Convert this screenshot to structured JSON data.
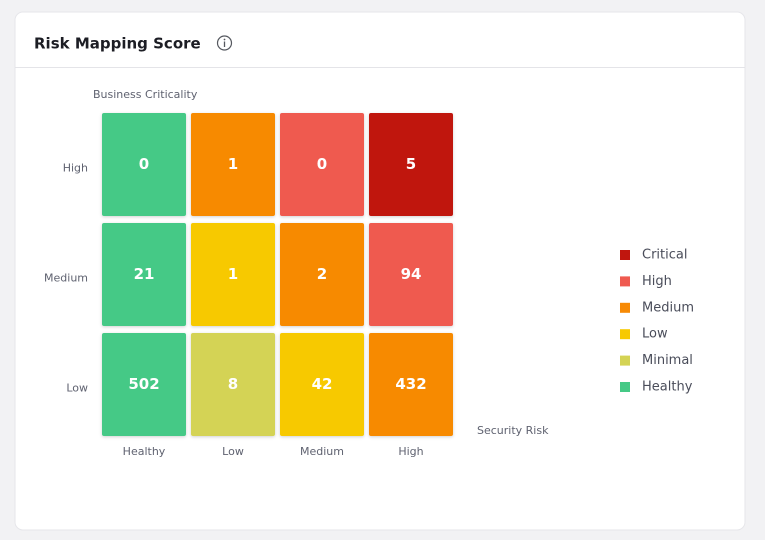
{
  "chart_data": {
    "type": "heatmap",
    "title": "Risk Mapping Score",
    "ylabel": "Business Criticality",
    "xlabel": "Security Risk",
    "x_categories": [
      "Healthy",
      "Low",
      "Medium",
      "High"
    ],
    "y_categories": [
      "High",
      "Medium",
      "Low"
    ],
    "values": [
      [
        0,
        1,
        0,
        5
      ],
      [
        21,
        1,
        2,
        94
      ],
      [
        502,
        8,
        42,
        432
      ]
    ],
    "colors": [
      [
        "#45c986",
        "#f78a05",
        "#ef5a50",
        "#c0160e"
      ],
      [
        "#45c986",
        "#f7c900",
        "#f78a05",
        "#ef5a50"
      ],
      [
        "#45c986",
        "#d4d354",
        "#f7c900",
        "#f78a05"
      ]
    ],
    "legend": [
      {
        "name": "Critical",
        "color": "#c0160e"
      },
      {
        "name": "High",
        "color": "#ef5a50"
      },
      {
        "name": "Medium",
        "color": "#f78a05"
      },
      {
        "name": "Low",
        "color": "#f7c900"
      },
      {
        "name": "Minimal",
        "color": "#d4d354"
      },
      {
        "name": "Healthy",
        "color": "#45c986"
      }
    ]
  }
}
